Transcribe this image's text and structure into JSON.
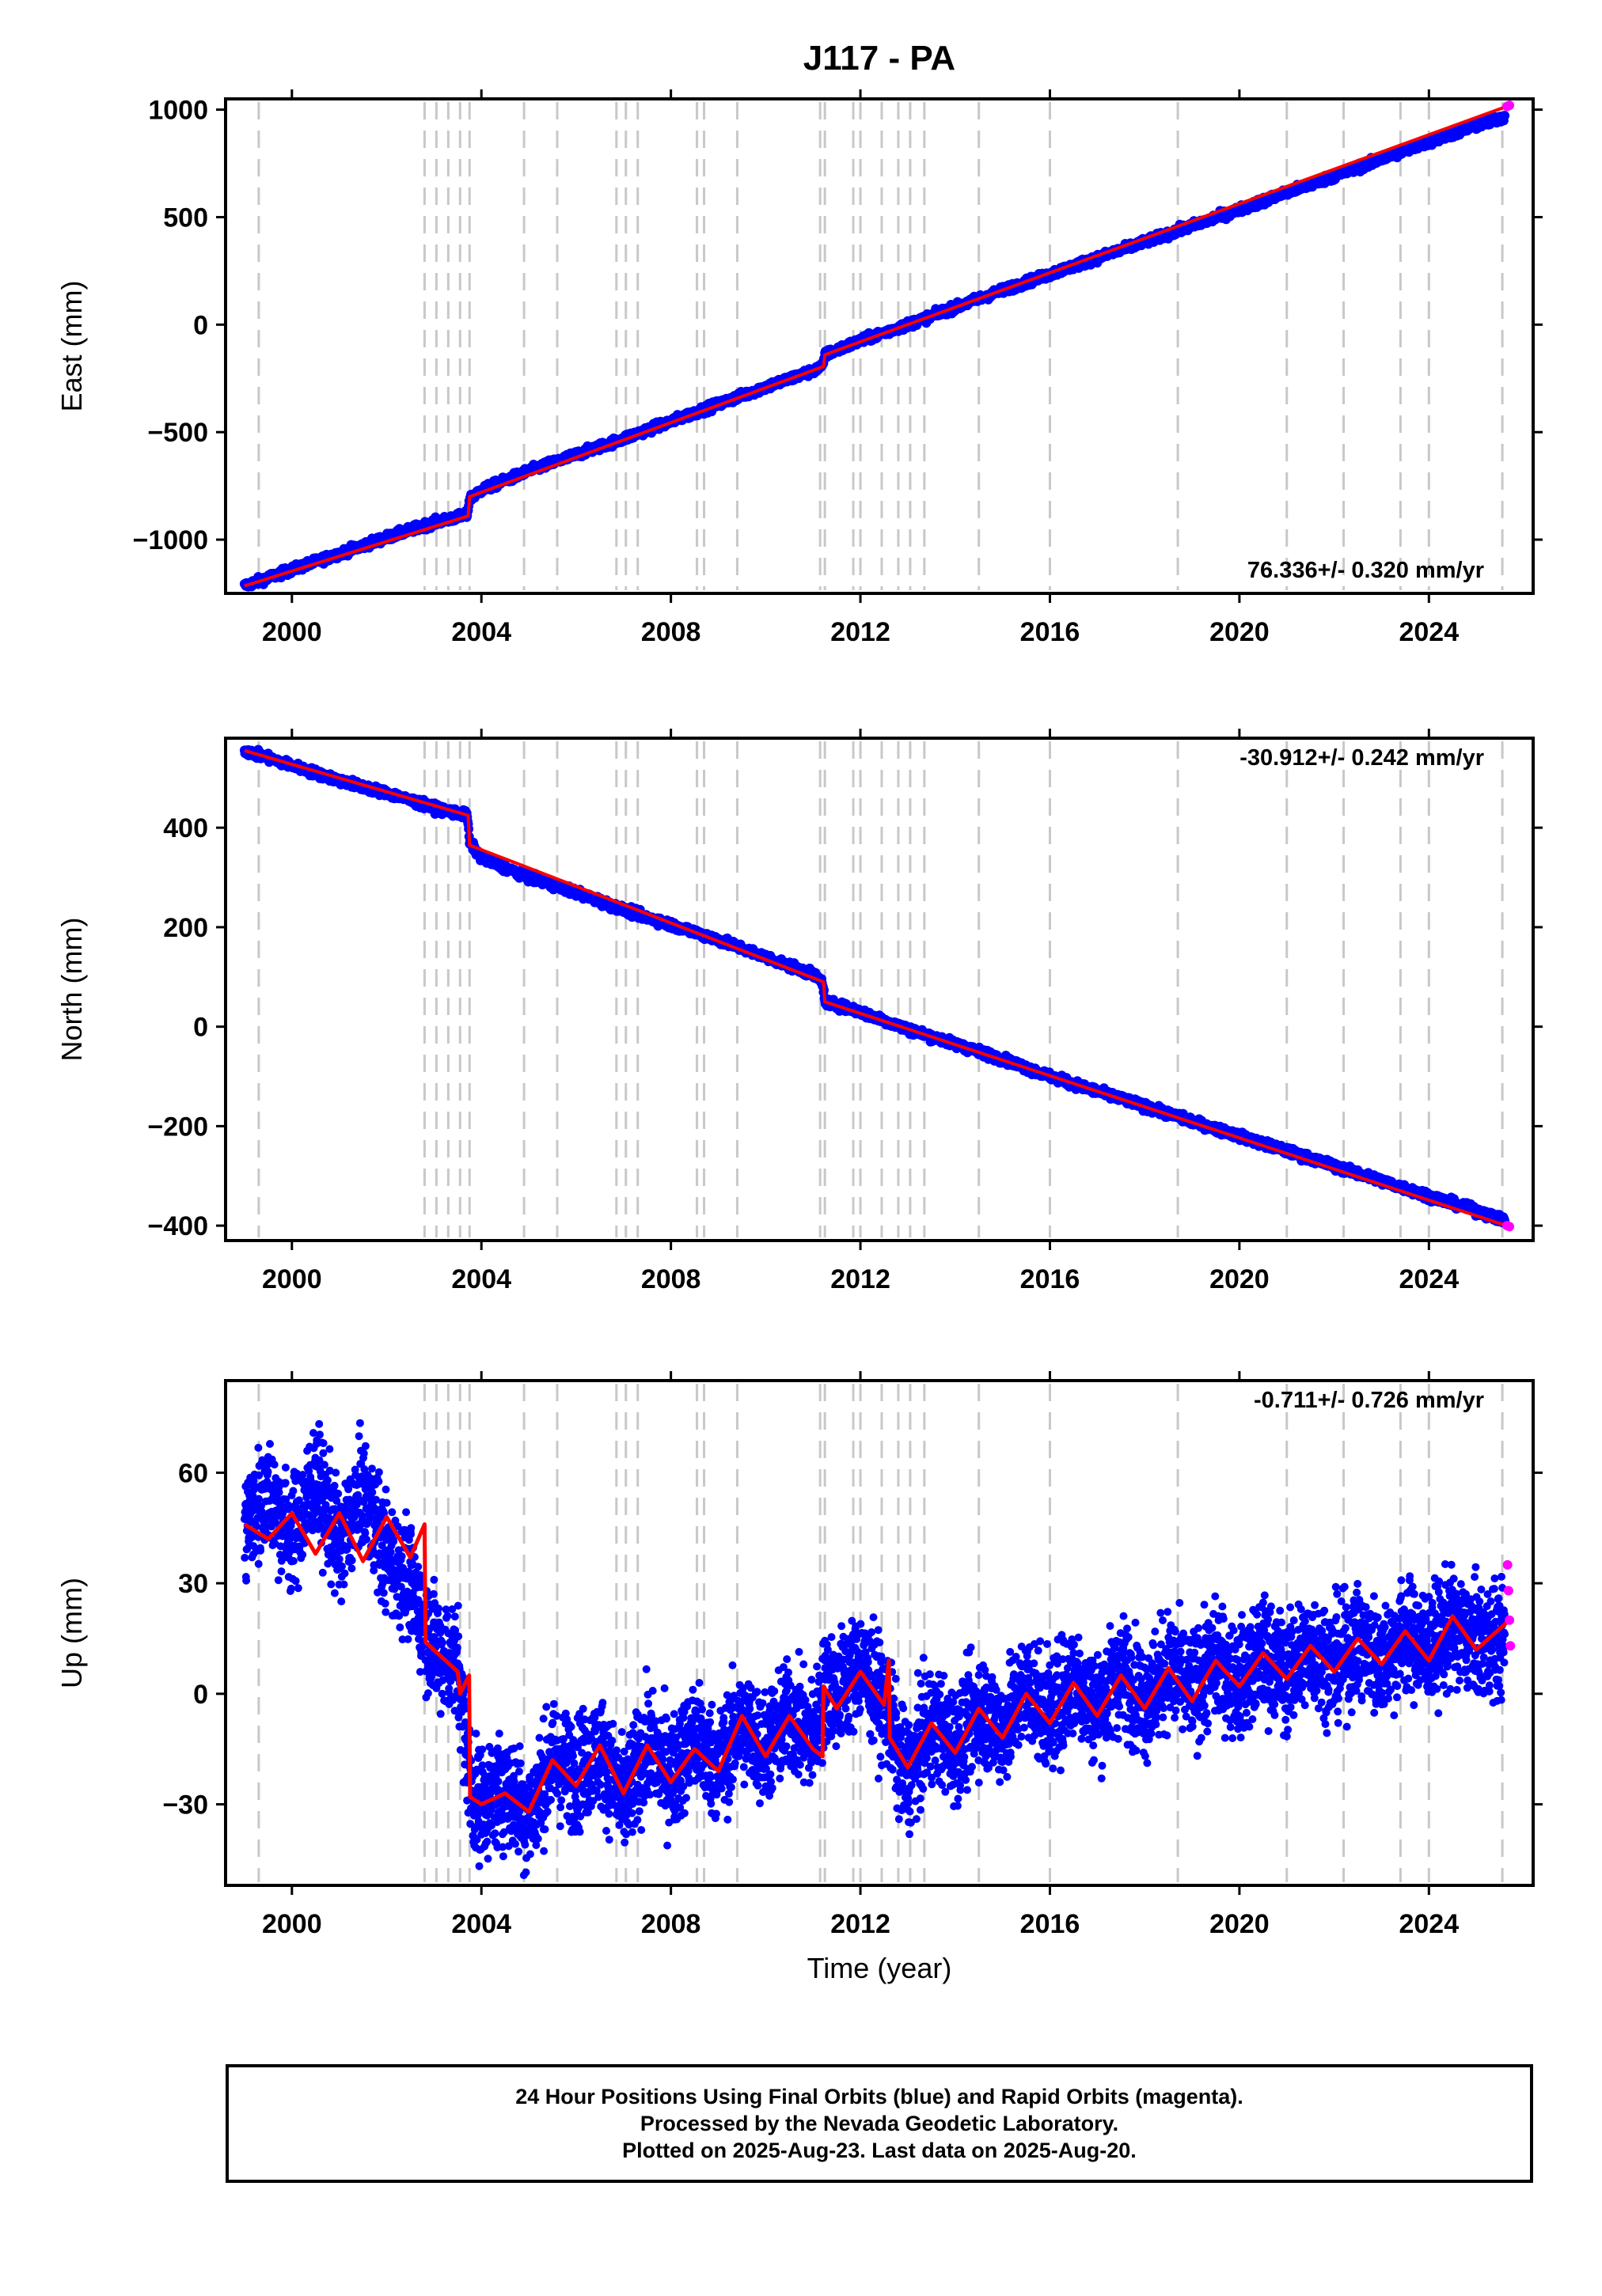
{
  "figure": {
    "title": "J117 - PA",
    "xlabel": "Time (year)",
    "colors": {
      "final": "#0000ff",
      "rapid": "#ff00ff",
      "model": "#ff0000",
      "event": "#c8c8c8"
    },
    "footer": [
      "24 Hour Positions Using Final Orbits (blue) and Rapid Orbits (magenta).",
      "Processed by the Nevada Geodetic Laboratory.",
      "Plotted on 2025-Aug-23. Last data on 2025-Aug-20."
    ]
  },
  "chart_data": [
    {
      "type": "scatter",
      "ylabel": "East (mm)",
      "rate": "76.336+/- 0.320 mm/yr",
      "rate_position": "bottom-right",
      "xlim": [
        1998.6,
        2026.2
      ],
      "ylim": [
        -1250,
        1050
      ],
      "xticks": [
        2000,
        2004,
        2008,
        2012,
        2016,
        2020,
        2024
      ],
      "yticks": [
        1000,
        500,
        0,
        -500,
        -1000
      ],
      "event_lines": [
        1999.3,
        2002.8,
        2003.05,
        2003.3,
        2003.55,
        2003.75,
        2004.9,
        2005.6,
        2006.85,
        2007.05,
        2007.3,
        2008.55,
        2008.7,
        2009.4,
        2011.15,
        2011.25,
        2011.85,
        2012.0,
        2012.45,
        2012.8,
        2013.05,
        2013.35,
        2014.5,
        2016.0,
        2018.7,
        2021.0,
        2022.2,
        2023.4,
        2024.0,
        2025.55
      ],
      "series": [
        {
          "role": "final",
          "x": [
            1999.0,
            2000.0,
            2001.0,
            2002.0,
            2003.0,
            2003.7,
            2003.75,
            2004.0,
            2005.0,
            2006.0,
            2007.0,
            2008.0,
            2009.0,
            2010.0,
            2011.0,
            2011.2,
            2011.25,
            2012.0,
            2013.0,
            2014.0,
            2015.0,
            2016.0,
            2017.0,
            2018.0,
            2019.0,
            2020.0,
            2021.0,
            2022.0,
            2023.0,
            2024.0,
            2025.0,
            2025.6
          ],
          "values": [
            -1215,
            -1140,
            -1065,
            -990,
            -920,
            -885,
            -810,
            -770,
            -680,
            -605,
            -530,
            -450,
            -370,
            -290,
            -215,
            -195,
            -140,
            -75,
            0,
            80,
            160,
            235,
            310,
            385,
            460,
            535,
            615,
            690,
            770,
            850,
            925,
            965
          ]
        },
        {
          "role": "rapid",
          "x": [
            2025.65,
            2025.7
          ],
          "values": [
            1015,
            1020
          ]
        }
      ],
      "model": {
        "x": [
          1999.0,
          2003.72,
          2003.75,
          2011.22,
          2011.25,
          2025.7
        ],
        "values": [
          -1215,
          -890,
          -800,
          -195,
          -140,
          1020
        ]
      }
    },
    {
      "type": "scatter",
      "ylabel": "North (mm)",
      "rate": "-30.912+/- 0.242 mm/yr",
      "rate_position": "top-right",
      "xlim": [
        1998.6,
        2026.2
      ],
      "ylim": [
        -430,
        580
      ],
      "xticks": [
        2000,
        2004,
        2008,
        2012,
        2016,
        2020,
        2024
      ],
      "yticks": [
        400,
        200,
        0,
        -200,
        -400
      ],
      "event_lines": [
        1999.3,
        2002.8,
        2003.05,
        2003.3,
        2003.55,
        2003.75,
        2004.9,
        2005.6,
        2006.85,
        2007.05,
        2007.3,
        2008.55,
        2008.7,
        2009.4,
        2011.15,
        2011.25,
        2011.85,
        2012.0,
        2012.45,
        2012.8,
        2013.05,
        2013.35,
        2014.5,
        2016.0,
        2018.7,
        2021.0,
        2022.2,
        2023.4,
        2024.0,
        2025.55
      ],
      "series": [
        {
          "role": "final",
          "x": [
            1999.0,
            2000.0,
            2001.0,
            2002.0,
            2003.0,
            2003.7,
            2003.75,
            2004.0,
            2005.0,
            2006.0,
            2007.0,
            2008.0,
            2009.0,
            2010.0,
            2011.0,
            2011.2,
            2011.25,
            2012.0,
            2013.0,
            2014.0,
            2015.0,
            2016.0,
            2017.0,
            2018.0,
            2019.0,
            2020.0,
            2021.0,
            2022.0,
            2023.0,
            2024.0,
            2025.0,
            2025.6
          ],
          "values": [
            555,
            525,
            495,
            470,
            440,
            425,
            370,
            340,
            300,
            270,
            235,
            205,
            175,
            140,
            105,
            90,
            50,
            30,
            -5,
            -35,
            -65,
            -100,
            -130,
            -160,
            -190,
            -220,
            -250,
            -280,
            -310,
            -340,
            -370,
            -390
          ]
        },
        {
          "role": "rapid",
          "x": [
            2025.65,
            2025.7
          ],
          "values": [
            -400,
            -402
          ]
        }
      ],
      "model": {
        "x": [
          1999.0,
          2003.72,
          2003.75,
          2011.22,
          2011.25,
          2025.7
        ],
        "values": [
          555,
          425,
          365,
          90,
          50,
          -402
        ]
      }
    },
    {
      "type": "scatter",
      "ylabel": "Up (mm)",
      "rate": "-0.711+/- 0.726 mm/yr",
      "rate_position": "top-right",
      "xlim": [
        1998.6,
        2026.2
      ],
      "ylim": [
        -52,
        85
      ],
      "xticks": [
        2000,
        2004,
        2008,
        2012,
        2016,
        2020,
        2024
      ],
      "yticks": [
        60,
        30,
        0,
        -30
      ],
      "event_lines": [
        1999.3,
        2002.8,
        2003.05,
        2003.3,
        2003.55,
        2003.75,
        2004.9,
        2005.6,
        2006.85,
        2007.05,
        2007.3,
        2008.55,
        2008.7,
        2009.4,
        2011.15,
        2011.25,
        2011.85,
        2012.0,
        2012.45,
        2012.8,
        2013.05,
        2013.35,
        2014.5,
        2016.0,
        2018.7,
        2021.0,
        2022.2,
        2023.4,
        2024.0,
        2025.55
      ],
      "series": [
        {
          "role": "final",
          "x": [
            1999.0,
            1999.5,
            2000.0,
            2000.5,
            2001.0,
            2001.5,
            2002.0,
            2002.5,
            2003.0,
            2003.5,
            2003.8,
            2004.0,
            2004.5,
            2005.0,
            2005.5,
            2006.0,
            2006.5,
            2007.0,
            2007.5,
            2008.0,
            2008.5,
            2009.0,
            2009.5,
            2010.0,
            2010.5,
            2011.0,
            2011.3,
            2011.5,
            2012.0,
            2012.6,
            2012.8,
            2013.0,
            2013.5,
            2014.0,
            2014.5,
            2015.0,
            2015.5,
            2016.0,
            2016.5,
            2017.0,
            2017.5,
            2018.0,
            2018.5,
            2019.0,
            2019.5,
            2020.0,
            2020.5,
            2021.0,
            2021.5,
            2022.0,
            2022.5,
            2023.0,
            2023.5,
            2024.0,
            2024.5,
            2025.0,
            2025.6
          ],
          "values": [
            45,
            55,
            42,
            58,
            40,
            55,
            38,
            30,
            12,
            8,
            -28,
            -30,
            -25,
            -33,
            -18,
            -22,
            -15,
            -30,
            -14,
            -22,
            -12,
            -20,
            -8,
            -15,
            -6,
            -12,
            3,
            0,
            8,
            -5,
            -18,
            -22,
            -8,
            -14,
            -4,
            -10,
            2,
            -6,
            4,
            -4,
            6,
            -2,
            7,
            1,
            9,
            3,
            11,
            5,
            13,
            8,
            14,
            9,
            16,
            12,
            18,
            14,
            15
          ]
        },
        {
          "role": "rapid",
          "x": [
            2025.66,
            2025.68,
            2025.7,
            2025.72
          ],
          "values": [
            35,
            28,
            20,
            13
          ]
        }
      ],
      "model": {
        "x": [
          1999.0,
          1999.5,
          2000.0,
          2000.5,
          2001.0,
          2001.5,
          2002.0,
          2002.5,
          2002.8,
          2002.82,
          2003.5,
          2003.55,
          2003.74,
          2003.76,
          2004.0,
          2004.5,
          2005.0,
          2005.5,
          2006.0,
          2006.5,
          2007.0,
          2007.5,
          2008.0,
          2008.5,
          2009.0,
          2009.5,
          2010.0,
          2010.5,
          2011.0,
          2011.2,
          2011.22,
          2011.5,
          2012.0,
          2012.5,
          2012.6,
          2012.62,
          2013.0,
          2013.5,
          2014.0,
          2014.5,
          2015.0,
          2015.5,
          2016.0,
          2016.5,
          2017.0,
          2017.5,
          2018.0,
          2018.5,
          2019.0,
          2019.5,
          2020.0,
          2020.5,
          2021.0,
          2021.5,
          2022.0,
          2022.5,
          2023.0,
          2023.5,
          2024.0,
          2024.5,
          2025.0,
          2025.7
        ],
        "values": [
          46,
          42,
          49,
          38,
          49,
          36,
          48,
          37,
          46,
          14,
          6,
          0,
          5,
          -28,
          -30,
          -27,
          -32,
          -18,
          -25,
          -14,
          -27,
          -14,
          -24,
          -15,
          -21,
          -6,
          -17,
          -6,
          -15,
          -17,
          2,
          -4,
          6,
          -3,
          9,
          -12,
          -20,
          -8,
          -16,
          -4,
          -12,
          0,
          -8,
          3,
          -6,
          5,
          -4,
          7,
          -2,
          9,
          2,
          11,
          4,
          13,
          6,
          15,
          8,
          17,
          9,
          21,
          12,
          20
        ]
      }
    }
  ]
}
